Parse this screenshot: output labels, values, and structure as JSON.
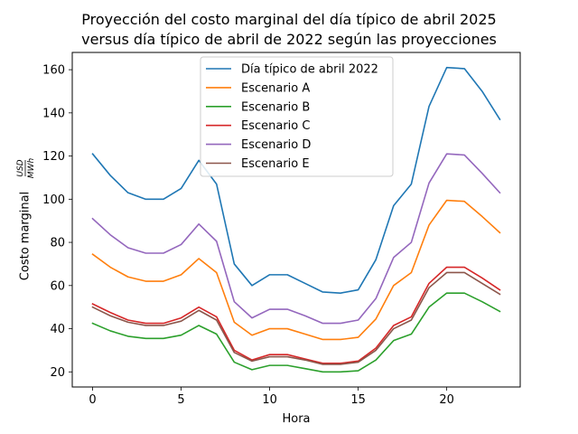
{
  "chart_data": {
    "type": "line",
    "title": [
      "Proyección del costo marginal del día típico de abril 2025",
      "versus día típico de abril de 2022 según las proyecciones"
    ],
    "xlabel": "Hora",
    "ylabel": "Costo marginal",
    "ylabel_unit_num": "USD",
    "ylabel_unit_den": "MWh",
    "xlim": [
      -1.15,
      24.15
    ],
    "ylim": [
      13,
      168
    ],
    "xticks": [
      0,
      5,
      10,
      15,
      20
    ],
    "yticks": [
      20,
      40,
      60,
      80,
      100,
      120,
      140,
      160
    ],
    "grid": false,
    "legend_position": "upper center",
    "x": [
      0,
      1,
      2,
      3,
      4,
      5,
      6,
      7,
      8,
      9,
      10,
      11,
      12,
      13,
      14,
      15,
      16,
      17,
      18,
      19,
      20,
      21,
      22,
      23
    ],
    "series": [
      {
        "name": "Día típico de abril 2022",
        "color": "#1f77b4",
        "values": [
          121,
          111,
          103,
          100,
          100,
          105,
          118,
          107,
          70,
          60,
          65,
          65,
          61,
          57,
          56.5,
          58,
          72,
          97,
          107,
          143,
          161,
          160.5,
          150,
          137
        ]
      },
      {
        "name": "Escenario A",
        "color": "#ff7f0e",
        "values": [
          74.5,
          68.5,
          64,
          62,
          62,
          65,
          72.5,
          66,
          43,
          37,
          40,
          40,
          37.5,
          35,
          35,
          36,
          44.5,
          60,
          66,
          88,
          99.5,
          99,
          92,
          84.5
        ]
      },
      {
        "name": "Escenario B",
        "color": "#2ca02c",
        "values": [
          42.5,
          39,
          36.5,
          35.5,
          35.5,
          37,
          41.5,
          37.5,
          24.5,
          21,
          23,
          23,
          21.5,
          20,
          20,
          20.5,
          25.5,
          34.5,
          37.5,
          50,
          56.5,
          56.5,
          52.5,
          48
        ]
      },
      {
        "name": "Escenario C",
        "color": "#d62728",
        "values": [
          51.5,
          47.5,
          44,
          42.5,
          42.5,
          45,
          50,
          45.5,
          30,
          25.5,
          28,
          28,
          26,
          24,
          24,
          25,
          31,
          41.5,
          45.5,
          61,
          68.5,
          68.5,
          63.5,
          58
        ]
      },
      {
        "name": "Escenario D",
        "color": "#9467bd",
        "values": [
          91,
          83.5,
          77.5,
          75,
          75,
          79,
          88.5,
          80.5,
          52.5,
          45,
          49,
          49,
          46,
          42.5,
          42.5,
          44,
          54,
          73,
          80,
          107.5,
          121,
          120.5,
          112,
          103
        ]
      },
      {
        "name": "Escenario E",
        "color": "#8c564b",
        "values": [
          50,
          46,
          43,
          41.5,
          41.5,
          43.5,
          48.5,
          44,
          29,
          25,
          27,
          27,
          25.5,
          23.5,
          23.5,
          24.5,
          30,
          40,
          44,
          59,
          66,
          66,
          61,
          56
        ]
      }
    ]
  }
}
